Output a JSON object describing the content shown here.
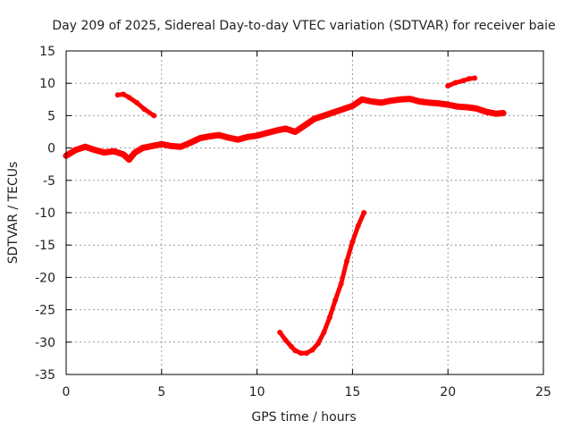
{
  "chart_data": {
    "type": "scatter",
    "title": "Day 209 of 2025, Sidereal Day-to-day VTEC variation (SDTVAR) for receiver baie",
    "xlabel": "GPS time / hours",
    "ylabel": "SDTVAR / TECUs",
    "xlim": [
      0,
      25
    ],
    "ylim": [
      -35,
      15
    ],
    "xticks": [
      0,
      5,
      10,
      15,
      20,
      25
    ],
    "yticks": [
      15,
      10,
      5,
      0,
      -5,
      -10,
      -15,
      -20,
      -25,
      -30,
      -35
    ],
    "grid": true,
    "series_color": "#ff0000",
    "series": [
      {
        "name": "main-trend",
        "x": [
          0,
          0.5,
          1,
          1.5,
          2,
          2.5,
          3,
          3.3,
          3.6,
          4,
          4.5,
          5,
          5.5,
          6,
          6.5,
          7,
          7.5,
          8,
          8.5,
          9,
          9.5,
          10,
          10.5,
          11,
          11.5,
          12,
          12.5,
          13,
          13.5,
          14,
          14.5,
          15,
          15.5,
          16,
          16.5,
          17,
          17.5,
          18,
          18.5,
          19,
          19.5,
          20,
          20.5,
          21,
          21.5,
          22,
          22.5,
          22.9
        ],
        "y": [
          -1.2,
          -0.3,
          0.2,
          -0.3,
          -0.7,
          -0.5,
          -1,
          -1.8,
          -0.7,
          0,
          0.3,
          0.6,
          0.3,
          0.2,
          0.8,
          1.5,
          1.8,
          2,
          1.6,
          1.3,
          1.7,
          1.9,
          2.3,
          2.7,
          3,
          2.5,
          3.5,
          4.5,
          5,
          5.5,
          6,
          6.5,
          7.5,
          7.2,
          7,
          7.3,
          7.5,
          7.6,
          7.2,
          7,
          6.9,
          6.7,
          6.4,
          6.3,
          6.1,
          5.6,
          5.3,
          5.4
        ]
      },
      {
        "name": "early-segment",
        "x": [
          2.7,
          3.0,
          3.3,
          3.7,
          4.1,
          4.6
        ],
        "y": [
          8.2,
          8.3,
          7.8,
          7.0,
          6.0,
          5.0
        ]
      },
      {
        "name": "late-segment",
        "x": [
          20.0,
          20.4,
          20.8,
          21.1,
          21.4
        ],
        "y": [
          9.6,
          10.1,
          10.4,
          10.7,
          10.8
        ]
      },
      {
        "name": "dip-curve",
        "x": [
          11.2,
          11.5,
          11.8,
          12.0,
          12.3,
          12.6,
          12.9,
          13.2,
          13.5,
          13.8,
          14.1,
          14.4,
          14.7,
          15.0,
          15.3,
          15.6
        ],
        "y": [
          -28.5,
          -29.7,
          -30.7,
          -31.3,
          -31.7,
          -31.7,
          -31.2,
          -30.2,
          -28.5,
          -26.2,
          -23.5,
          -21,
          -17.5,
          -14.5,
          -12,
          -10
        ]
      }
    ]
  }
}
